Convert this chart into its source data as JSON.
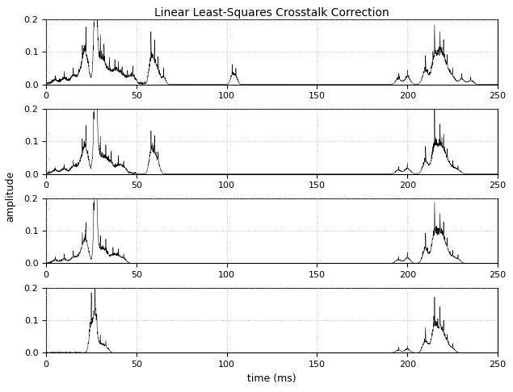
{
  "title": "Linear Least-Squares Crosstalk Correction",
  "xlabel": "time (ms)",
  "ylabel": "amplitude",
  "xlim": [
    0,
    250
  ],
  "ylim": [
    0,
    0.2
  ],
  "yticks": [
    0,
    0.1,
    0.2
  ],
  "xticks": [
    0,
    50,
    100,
    150,
    200,
    250
  ],
  "num_subplots": 4,
  "n_samples": 2500,
  "seed": 42,
  "background_color": "#ffffff",
  "line_color": "#000000",
  "grid_color": "#aaaaaa",
  "title_fontsize": 10,
  "label_fontsize": 9,
  "tick_fontsize": 8
}
